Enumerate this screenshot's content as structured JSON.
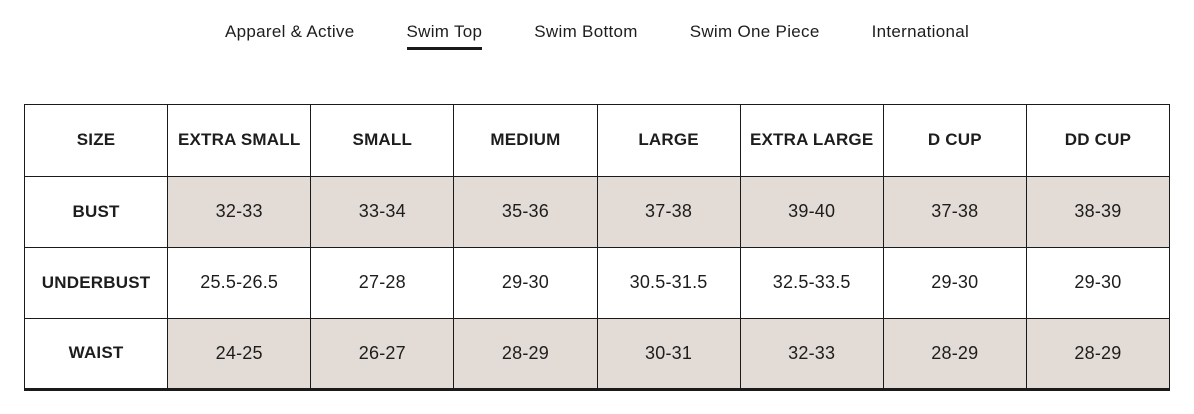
{
  "tabs": {
    "items": [
      {
        "label": "Apparel & Active",
        "active": false
      },
      {
        "label": "Swim Top",
        "active": true
      },
      {
        "label": "Swim Bottom",
        "active": false
      },
      {
        "label": "Swim One Piece",
        "active": false
      },
      {
        "label": "International",
        "active": false
      }
    ]
  },
  "size_chart": {
    "columns": [
      "SIZE",
      "EXTRA SMALL",
      "SMALL",
      "MEDIUM",
      "LARGE",
      "EXTRA LARGE",
      "D CUP",
      "DD CUP"
    ],
    "rows": [
      {
        "label": "BUST",
        "shaded": true,
        "values": [
          "32-33",
          "33-34",
          "35-36",
          "37-38",
          "39-40",
          "37-38",
          "38-39"
        ]
      },
      {
        "label": "UNDERBUST",
        "shaded": false,
        "values": [
          "25.5-26.5",
          "27-28",
          "29-30",
          "30.5-31.5",
          "32.5-33.5",
          "29-30",
          "29-30"
        ]
      },
      {
        "label": "WAIST",
        "shaded": true,
        "values": [
          "24-25",
          "26-27",
          "28-29",
          "30-31",
          "32-33",
          "28-29",
          "28-29"
        ]
      }
    ]
  },
  "colors": {
    "shaded_cell": "#e3dbd5",
    "border": "#1a1a1a",
    "text": "#1d1d1d",
    "background": "#ffffff"
  }
}
